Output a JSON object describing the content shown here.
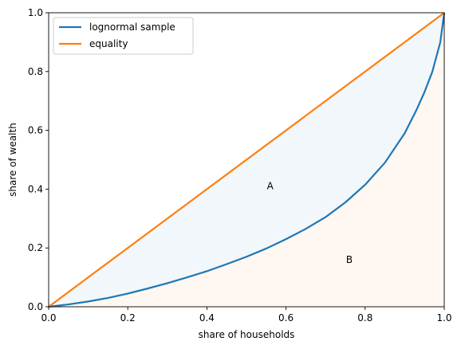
{
  "chart_data": {
    "type": "line",
    "title": "",
    "xlabel": "share of households",
    "ylabel": "share of wealth",
    "xlim": [
      0,
      1
    ],
    "ylim": [
      0,
      1
    ],
    "xticks": [
      "0.0",
      "0.2",
      "0.4",
      "0.6",
      "0.8",
      "1.0"
    ],
    "yticks": [
      "0.0",
      "0.2",
      "0.4",
      "0.6",
      "0.8",
      "1.0"
    ],
    "grid": false,
    "legend_position": "top-left",
    "series": [
      {
        "name": "lognormal sample",
        "color": "#1f77b4",
        "x": [
          0.0,
          0.05,
          0.1,
          0.15,
          0.2,
          0.25,
          0.3,
          0.35,
          0.4,
          0.45,
          0.5,
          0.55,
          0.6,
          0.65,
          0.7,
          0.75,
          0.8,
          0.85,
          0.9,
          0.93,
          0.95,
          0.97,
          0.98,
          0.99,
          0.995,
          1.0
        ],
        "y": [
          0.0,
          0.008,
          0.018,
          0.03,
          0.045,
          0.062,
          0.08,
          0.1,
          0.121,
          0.145,
          0.17,
          0.198,
          0.23,
          0.265,
          0.305,
          0.355,
          0.415,
          0.49,
          0.59,
          0.67,
          0.73,
          0.8,
          0.85,
          0.9,
          0.95,
          1.0
        ]
      },
      {
        "name": "equality",
        "color": "#ff7f0e",
        "x": [
          0.0,
          1.0
        ],
        "y": [
          0.0,
          1.0
        ]
      }
    ],
    "fills": [
      {
        "between": "equality-and-lognormal",
        "color": "#1f77b4",
        "opacity": 0.06
      },
      {
        "between": "lognormal-and-xaxis",
        "color": "#ff7f0e",
        "opacity": 0.06
      }
    ],
    "annotations": [
      {
        "text": "A",
        "x": 0.56,
        "y": 0.41
      },
      {
        "text": "B",
        "x": 0.76,
        "y": 0.16
      }
    ]
  }
}
